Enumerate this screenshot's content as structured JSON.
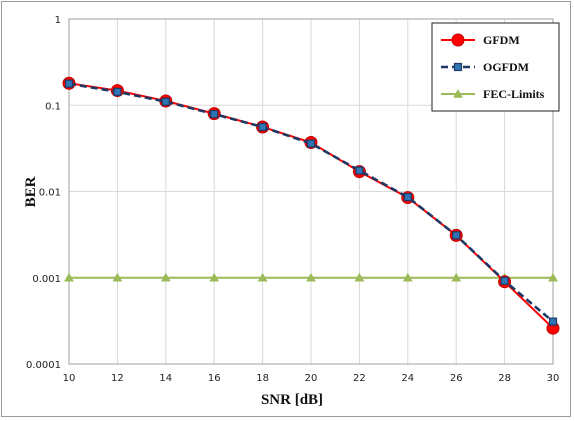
{
  "chart_data": {
    "type": "line",
    "xlabel": "SNR [dB]",
    "ylabel": "BER",
    "x": [
      10,
      12,
      14,
      16,
      18,
      20,
      22,
      24,
      26,
      28,
      30
    ],
    "xlim": [
      10,
      30
    ],
    "ylim": [
      0.0001,
      1
    ],
    "yscale": "log",
    "x_tick_labels": [
      "10",
      "12",
      "14",
      "16",
      "18",
      "20",
      "22",
      "24",
      "26",
      "28",
      "30"
    ],
    "y_tick_labels": [
      "0.0001",
      "0.001",
      "0.01",
      "0.1",
      "1"
    ],
    "y_ticks": [
      0.0001,
      0.001,
      0.01,
      0.1,
      1
    ],
    "grid": true,
    "legend_position": "top-right",
    "series": [
      {
        "name": "GFDM",
        "color": "#ff0000",
        "marker": "circle",
        "line_style": "solid",
        "values": [
          0.18,
          0.148,
          0.112,
          0.08,
          0.056,
          0.037,
          0.017,
          0.0085,
          0.0031,
          0.0009,
          0.00026
        ]
      },
      {
        "name": "OGFDM",
        "color": "#1f3864",
        "marker_color": "#2e75b6",
        "marker": "square",
        "line_style": "dashed",
        "values": [
          0.178,
          0.143,
          0.11,
          0.079,
          0.056,
          0.036,
          0.0175,
          0.0086,
          0.0031,
          0.00092,
          0.00031
        ]
      },
      {
        "name": "FEC-Limits",
        "color": "#9bbb59",
        "marker": "triangle",
        "line_style": "solid",
        "values": [
          0.001,
          0.001,
          0.001,
          0.001,
          0.001,
          0.001,
          0.001,
          0.001,
          0.001,
          0.001,
          0.001
        ]
      }
    ]
  }
}
